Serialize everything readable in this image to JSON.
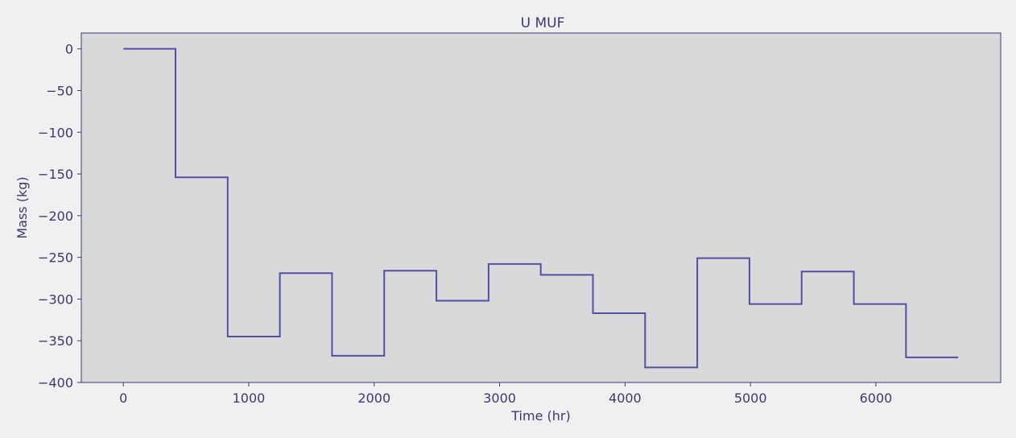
{
  "chart_data": {
    "type": "line",
    "title": "U MUF",
    "xlabel": "Time (hr)",
    "ylabel": "Mass (kg)",
    "xlim": [
      -335,
      6995
    ],
    "ylim": [
      -400,
      19
    ],
    "x_ticks": [
      0,
      1000,
      2000,
      3000,
      4000,
      5000,
      6000
    ],
    "y_ticks": [
      0,
      -50,
      -100,
      -150,
      -200,
      -250,
      -300,
      -350,
      -400
    ],
    "x_tick_labels": [
      "0",
      "1000",
      "2000",
      "3000",
      "4000",
      "5000",
      "6000"
    ],
    "y_tick_labels": [
      "0",
      "−50",
      "−100",
      "−150",
      "−200",
      "−250",
      "−300",
      "−350",
      "−400"
    ],
    "grid": false,
    "step": "post",
    "series": [
      {
        "x": [
          0,
          416,
          832,
          1248,
          1664,
          2080,
          2496,
          2912,
          3328,
          3744,
          4160,
          4576,
          4992,
          5408,
          5824,
          6240,
          6656
        ],
        "y": [
          0,
          -154,
          -345,
          -269,
          -368,
          -266,
          -302,
          -258,
          -271,
          -317,
          -382,
          -251,
          -306,
          -267,
          -306,
          -370,
          -370
        ]
      }
    ],
    "colors": {
      "line": "#5050a8",
      "plot_background": "#d9d9d9",
      "figure_background": "#f0f0f0",
      "text": "#3a3a72"
    }
  }
}
